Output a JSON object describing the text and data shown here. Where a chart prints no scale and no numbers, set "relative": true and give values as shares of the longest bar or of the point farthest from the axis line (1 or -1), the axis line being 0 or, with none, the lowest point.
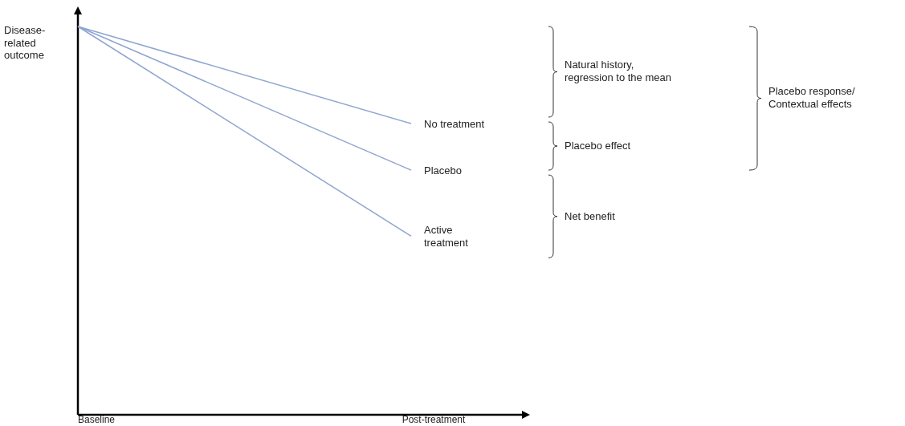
{
  "chart_data": {
    "type": "line",
    "relative": true,
    "ylabel": "Disease-related outcome",
    "categories": [
      "Baseline",
      "Post-treatment"
    ],
    "series": [
      {
        "name": "No treatment",
        "color": "#8fa5d0",
        "values": [
          1,
          0.75
        ]
      },
      {
        "name": "Placebo",
        "color": "#8fa5d0",
        "values": [
          1,
          0.63
        ]
      },
      {
        "name": "Active treatment",
        "color": "#8fa5d0",
        "values": [
          1,
          0.46
        ]
      }
    ],
    "annotations": [
      "Natural history, regression to the mean",
      "Placebo effect",
      "Net benefit",
      "Placebo response/ Contextual effects"
    ],
    "marker": "none",
    "line_style": "solid"
  }
}
